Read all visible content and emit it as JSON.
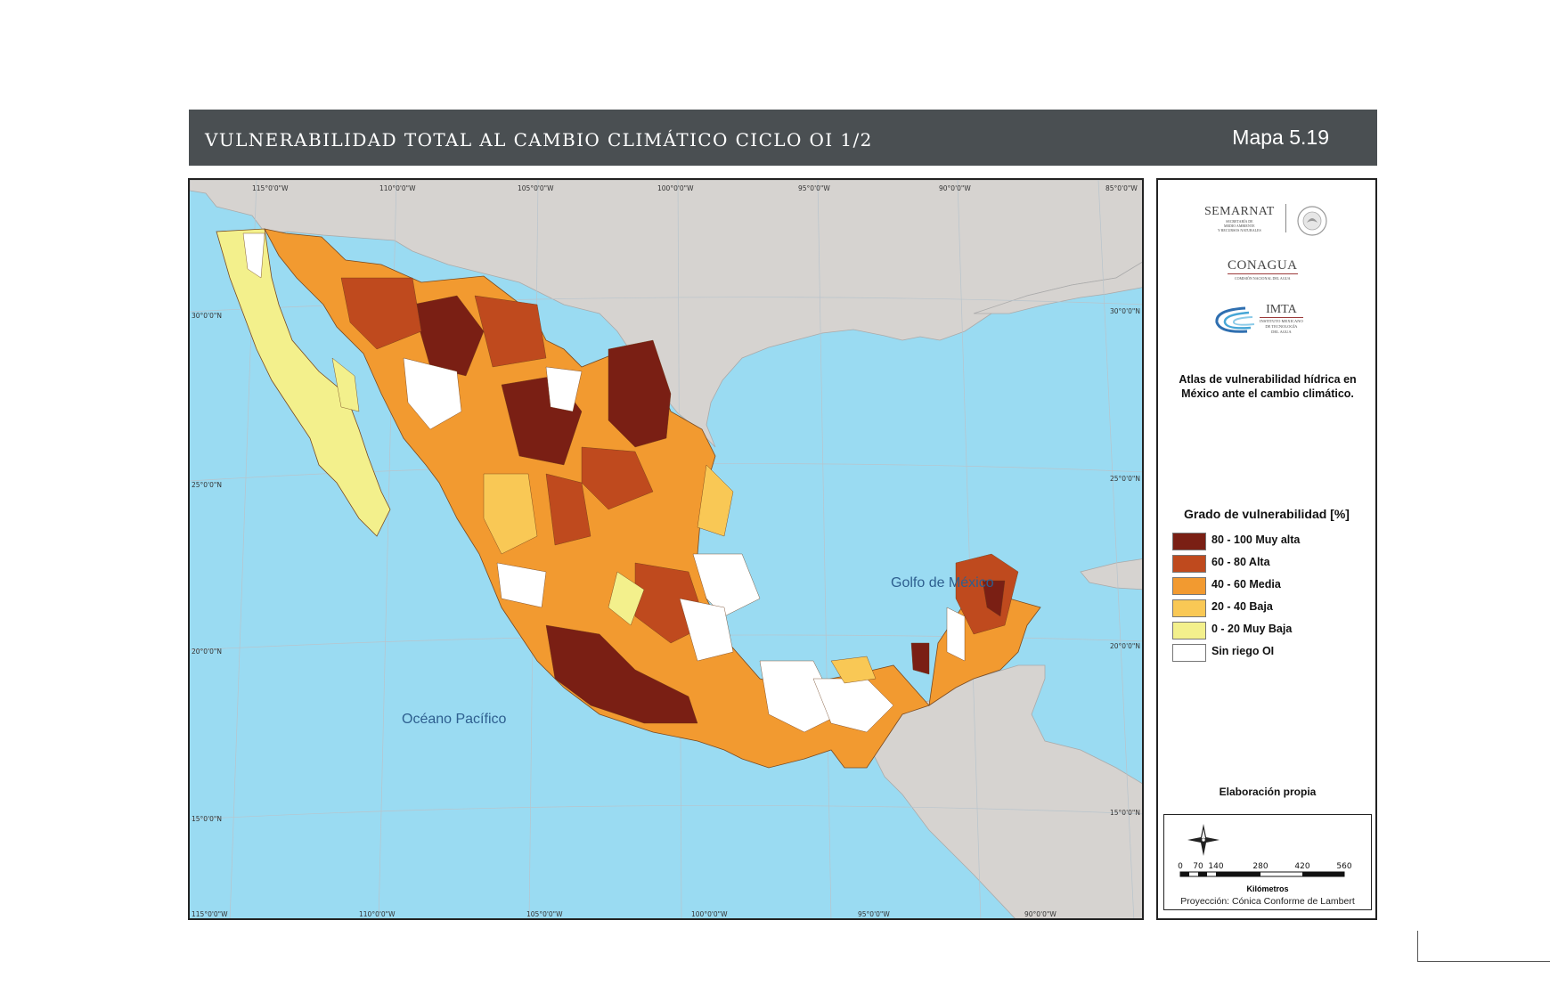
{
  "header": {
    "title": "VULNERABILIDAD TOTAL AL CAMBIO CLIMÁTICO CICLO OI 1/2",
    "map_number": "Mapa 5.19"
  },
  "map": {
    "top_longitude_labels": [
      "115°0'0\"W",
      "110°0'0\"W",
      "105°0'0\"W",
      "100°0'0\"W",
      "95°0'0\"W",
      "90°0'0\"W",
      "85°0'0\"W"
    ],
    "bottom_longitude_labels": [
      "115°0'0\"W",
      "110°0'0\"W",
      "105°0'0\"W",
      "100°0'0\"W",
      "95°0'0\"W",
      "90°0'0\"W"
    ],
    "left_latitude_labels": [
      "30°0'0\"N",
      "25°0'0\"N",
      "20°0'0\"N",
      "15°0'0\"N"
    ],
    "right_latitude_labels": [
      "30°0'0\"N",
      "25°0'0\"N",
      "20°0'0\"N",
      "15°0'0\"N"
    ],
    "labels": {
      "gulf": "Golfo de México",
      "pacific": "Océano Pacífico"
    },
    "colors": {
      "ocean": "#9adbf2",
      "land_other": "#d6d3d0"
    }
  },
  "sidebar": {
    "logos": {
      "semarnat": "SEMARNAT",
      "semarnat_sub": [
        "SECRETARÍA DE",
        "MEDIO AMBIENTE",
        "Y RECURSOS NATURALES"
      ],
      "conagua": "CONAGUA",
      "conagua_sub": "COMISIÓN NACIONAL DEL AGUA",
      "imta": "IMTA",
      "imta_sub": [
        "INSTITUTO MEXICANO",
        "DE TECNOLOGÍA",
        "DEL AGUA"
      ]
    },
    "atlas_title": "Atlas de vulnerabilidad hídrica en México ante el cambio climático.",
    "legend": {
      "title": "Grado de vulnerabilidad [%]",
      "items": [
        {
          "label": "80 - 100 Muy alta",
          "color": "#7a1f14"
        },
        {
          "label": "60 - 80 Alta",
          "color": "#bf4a1e"
        },
        {
          "label": "40 - 60 Media",
          "color": "#f29a30"
        },
        {
          "label": "20 - 40 Baja",
          "color": "#f9c855"
        },
        {
          "label": "0 - 20 Muy Baja",
          "color": "#f3f08c"
        },
        {
          "label": "Sin riego OI",
          "color": "#ffffff"
        }
      ]
    },
    "source": "Elaboración propia",
    "scale": {
      "ticks": [
        "0",
        "70",
        "140",
        "280",
        "420",
        "560"
      ],
      "unit": "Kilómetros",
      "projection": "Proyección: Cónica Conforme de Lambert"
    }
  }
}
